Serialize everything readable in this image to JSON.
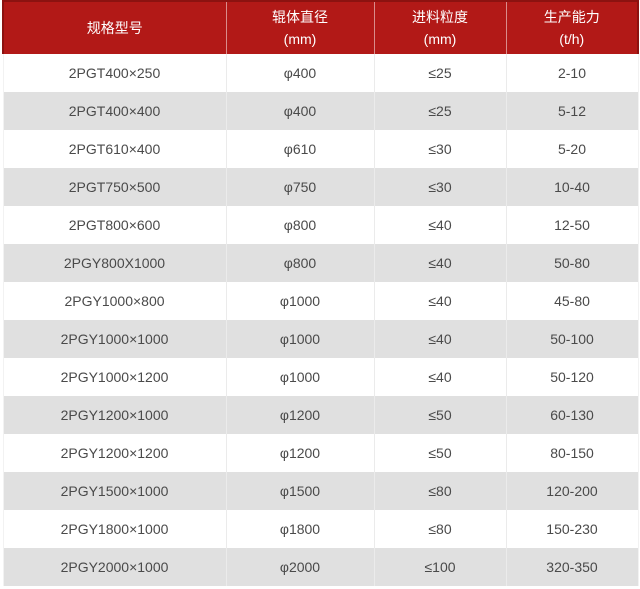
{
  "colors": {
    "header_bg": "#b21917",
    "header_border": "#8c1210",
    "header_text": "#ffffff",
    "header_divider": "rgba(255,255,255,0.5)",
    "row_white": "#ffffff",
    "row_alt_gray": "#e0e0e0",
    "cell_divider": "#ebebeb",
    "cell_text": "#4a4a4a"
  },
  "table": {
    "headers": [
      {
        "title": "规格型号",
        "unit": ""
      },
      {
        "title": "辊体直径",
        "unit": "(mm)"
      },
      {
        "title": "进料粒度",
        "unit": "(mm)"
      },
      {
        "title": "生产能力",
        "unit": "(t/h)"
      }
    ],
    "rows": [
      [
        "2PGT400×250",
        "φ400",
        "≤25",
        "2-10"
      ],
      [
        "2PGT400×400",
        "φ400",
        "≤25",
        "5-12"
      ],
      [
        "2PGT610×400",
        "φ610",
        "≤30",
        "5-20"
      ],
      [
        "2PGT750×500",
        "φ750",
        "≤30",
        "10-40"
      ],
      [
        "2PGT800×600",
        "φ800",
        "≤40",
        "12-50"
      ],
      [
        "2PGY800X1000",
        "φ800",
        "≤40",
        "50-80"
      ],
      [
        "2PGY1000×800",
        "φ1000",
        "≤40",
        "45-80"
      ],
      [
        "2PGY1000×1000",
        "φ1000",
        "≤40",
        "50-100"
      ],
      [
        "2PGY1000×1200",
        "φ1000",
        "≤40",
        "50-120"
      ],
      [
        "2PGY1200×1000",
        "φ1200",
        "≤50",
        "60-130"
      ],
      [
        "2PGY1200×1200",
        "φ1200",
        "≤50",
        "80-150"
      ],
      [
        "2PGY1500×1000",
        "φ1500",
        "≤80",
        "120-200"
      ],
      [
        "2PGY1800×1000",
        "φ1800",
        "≤80",
        "150-230"
      ],
      [
        "2PGY2000×1000",
        "φ2000",
        "≤100",
        "320-350"
      ]
    ]
  },
  "chart_data": {
    "type": "table",
    "columns": [
      "规格型号",
      "辊体直径 (mm)",
      "进料粒度 (mm)",
      "生产能力 (t/h)"
    ],
    "rows": [
      [
        "2PGT400×250",
        "φ400",
        "≤25",
        "2-10"
      ],
      [
        "2PGT400×400",
        "φ400",
        "≤25",
        "5-12"
      ],
      [
        "2PGT610×400",
        "φ610",
        "≤30",
        "5-20"
      ],
      [
        "2PGT750×500",
        "φ750",
        "≤30",
        "10-40"
      ],
      [
        "2PGT800×600",
        "φ800",
        "≤40",
        "12-50"
      ],
      [
        "2PGY800X1000",
        "φ800",
        "≤40",
        "50-80"
      ],
      [
        "2PGY1000×800",
        "φ1000",
        "≤40",
        "45-80"
      ],
      [
        "2PGY1000×1000",
        "φ1000",
        "≤40",
        "50-100"
      ],
      [
        "2PGY1000×1200",
        "φ1000",
        "≤40",
        "50-120"
      ],
      [
        "2PGY1200×1000",
        "φ1200",
        "≤50",
        "60-130"
      ],
      [
        "2PGY1200×1200",
        "φ1200",
        "≤50",
        "80-150"
      ],
      [
        "2PGY1500×1000",
        "φ1500",
        "≤80",
        "120-200"
      ],
      [
        "2PGY1800×1000",
        "φ1800",
        "≤80",
        "150-230"
      ],
      [
        "2PGY2000×1000",
        "φ2000",
        "≤100",
        "320-350"
      ]
    ]
  }
}
